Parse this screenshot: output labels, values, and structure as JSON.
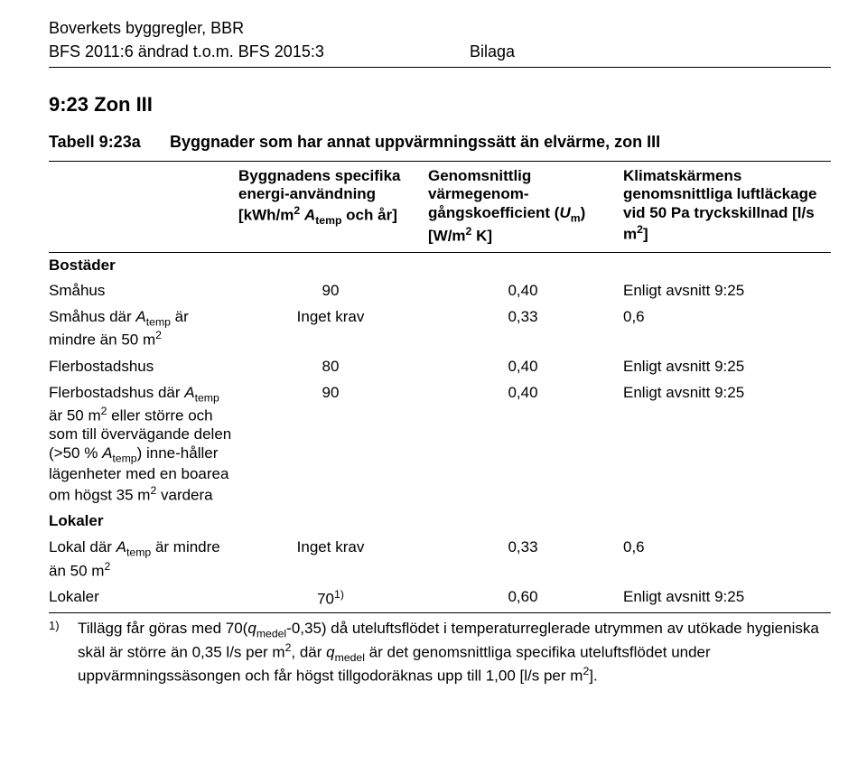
{
  "header": {
    "line1": "Boverkets byggregler, BBR",
    "line2_left": "BFS 2011:6 ändrad t.o.m. BFS 2015:3",
    "line2_right": "Bilaga"
  },
  "section_title": "9:23 Zon III",
  "table_label": "Tabell 9:23a",
  "table_caption": "Byggnader som har annat uppvärmningssätt än elvärme, zon III",
  "columns": {
    "c1": "",
    "c2_html": "Byggnadens specifika energi-användning [kWh/m<span class='sup'>2</span> <span class='it'>A</span><span class='sub'>temp</span> och år]",
    "c3_html": "Genomsnittlig värmegenom-gångskoefficient (<span class='it'>U</span><span class='sub'>m</span>) [W/m<span class='sup'>2</span> K]",
    "c4_html": "Klimatskärmens genomsnittliga luftläckage vid 50 Pa tryckskillnad [l/s m<span class='sup'>2</span>]"
  },
  "rows": [
    {
      "kind": "section",
      "c1_html": "Bostäder"
    },
    {
      "kind": "data",
      "c1_html": "Småhus",
      "c2": "90",
      "c3": "0,40",
      "c4": "Enligt avsnitt 9:25"
    },
    {
      "kind": "data",
      "c1_html": "Småhus där <span class='it'>A</span><span class='sub'>temp</span> är mindre än 50 m<span class='sup'>2</span>",
      "c2": "Inget krav",
      "c3": "0,33",
      "c4": "0,6"
    },
    {
      "kind": "data",
      "c1_html": "Flerbostadshus",
      "c2": "80",
      "c3": "0,40",
      "c4": "Enligt avsnitt 9:25"
    },
    {
      "kind": "data",
      "c1_html": "Flerbostadshus där <span class='it'>A</span><span class='sub'>temp</span> är 50 m<span class='sup'>2</span> eller större och som till övervägande delen (>50 % <span class='it'>A</span><span class='sub'>temp</span>) inne-håller lägenheter med en boarea om högst 35 m<span class='sup'>2</span> vardera",
      "c2": "90",
      "c3": "0,40",
      "c4": "Enligt avsnitt 9:25"
    },
    {
      "kind": "section",
      "c1_html": "Lokaler"
    },
    {
      "kind": "data",
      "c1_html": "Lokal där <span class='it'>A</span><span class='sub'>temp</span> är mindre än 50 m<span class='sup'>2</span>",
      "c2": "Inget krav",
      "c3": "0,33",
      "c4": "0,6"
    },
    {
      "kind": "data",
      "c1_html": "Lokaler",
      "c2_html": "70<span class='sup'>1)</span>",
      "c3": "0,60",
      "c4": "Enligt avsnitt 9:25"
    }
  ],
  "footnote": {
    "mark": "1)",
    "body_html": "Tillägg får göras med 70(<span class='it'>q</span><span class='sub'>medel</span>-0,35) då uteluftsflödet i temperaturreglerade utrymmen av utökade hygieniska skäl är större än 0,35 l/s per m<span class='sup'>2</span>, där <span class='it'>q</span><span class='sub'>medel</span> är det genomsnittliga specifika uteluftsflödet under uppvärmningssäsongen och får högst tillgodoräknas upp till 1,00 [l/s per m<span class='sup'>2</span>]."
  }
}
